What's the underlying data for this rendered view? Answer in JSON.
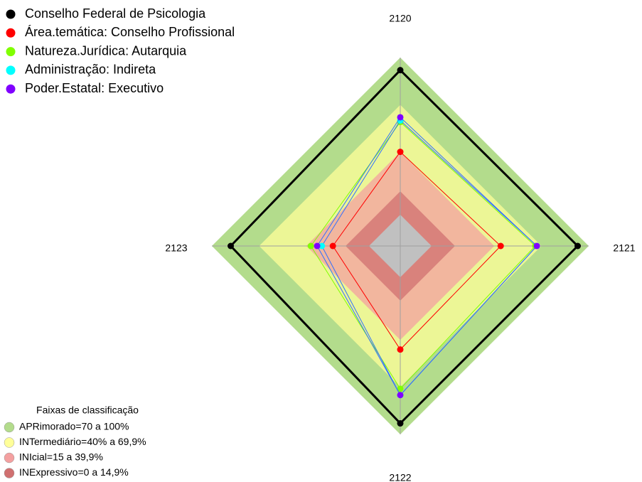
{
  "chart_data": {
    "type": "radar",
    "axes": [
      "2120",
      "2121",
      "2122",
      "2123"
    ],
    "rlim": [
      0,
      100
    ],
    "series": [
      {
        "name": "Conselho Federal de Psicologia",
        "color": "#000000",
        "values": [
          92,
          93,
          93,
          88
        ]
      },
      {
        "name": "Área.temática: Conselho Profissional",
        "color": "#ff0000",
        "values": [
          40,
          44,
          46,
          23
        ]
      },
      {
        "name": "Natureza.Jurídica: Autarquia",
        "color": "#80ff00",
        "values": [
          59,
          66,
          71,
          37
        ]
      },
      {
        "name": "Administração: Indireta",
        "color": "#00ffff",
        "values": [
          60,
          67,
          75,
          30
        ]
      },
      {
        "name": "Poder.Estatal: Executivo",
        "color": "#8000ff",
        "values": [
          62,
          67,
          75,
          33
        ]
      }
    ],
    "bands_title": "Faixas de classificação",
    "bands": [
      {
        "label": "APRimorado=70 a 100%",
        "max": 100,
        "color": "#b3dc8c"
      },
      {
        "label": "INTermediário=40% a 69,9%",
        "max": 69.9,
        "color": "#ffff99"
      },
      {
        "label": "INIcial=15 a 39,9%",
        "max": 39.9,
        "color": "#f4a0a0"
      },
      {
        "label": "INExpressivo=0 a 14,9%",
        "max": 14.9,
        "color": "#d07070"
      }
    ]
  }
}
